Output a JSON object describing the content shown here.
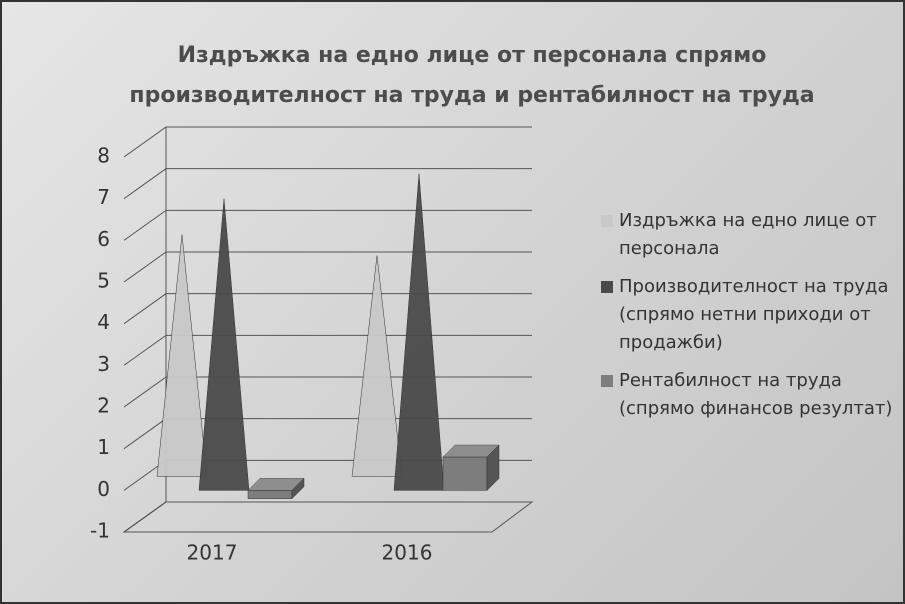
{
  "chart_data": {
    "type": "bar",
    "title": "Издръжка на едно лице от персонала спрямо производителност на труда и рентабилност на труда",
    "categories": [
      "2017",
      "2016"
    ],
    "series": [
      {
        "name": "Издръжка на едно лице от персонала",
        "color": "#c9c9c9",
        "values": [
          5.8,
          5.3
        ]
      },
      {
        "name": "Производителност на труда (спрямо нетни приходи от продажби)",
        "color": "#4a4a4a",
        "values": [
          7.0,
          7.6
        ]
      },
      {
        "name": "Рентабилност на труда (спрямо финансов резултат)",
        "color": "#7d7d7d",
        "values": [
          -0.2,
          0.8
        ]
      }
    ],
    "ylim": [
      -1,
      8
    ],
    "yticks": [
      -1,
      0,
      1,
      2,
      3,
      4,
      5,
      6,
      7,
      8
    ],
    "grid": true,
    "legend": "right"
  }
}
